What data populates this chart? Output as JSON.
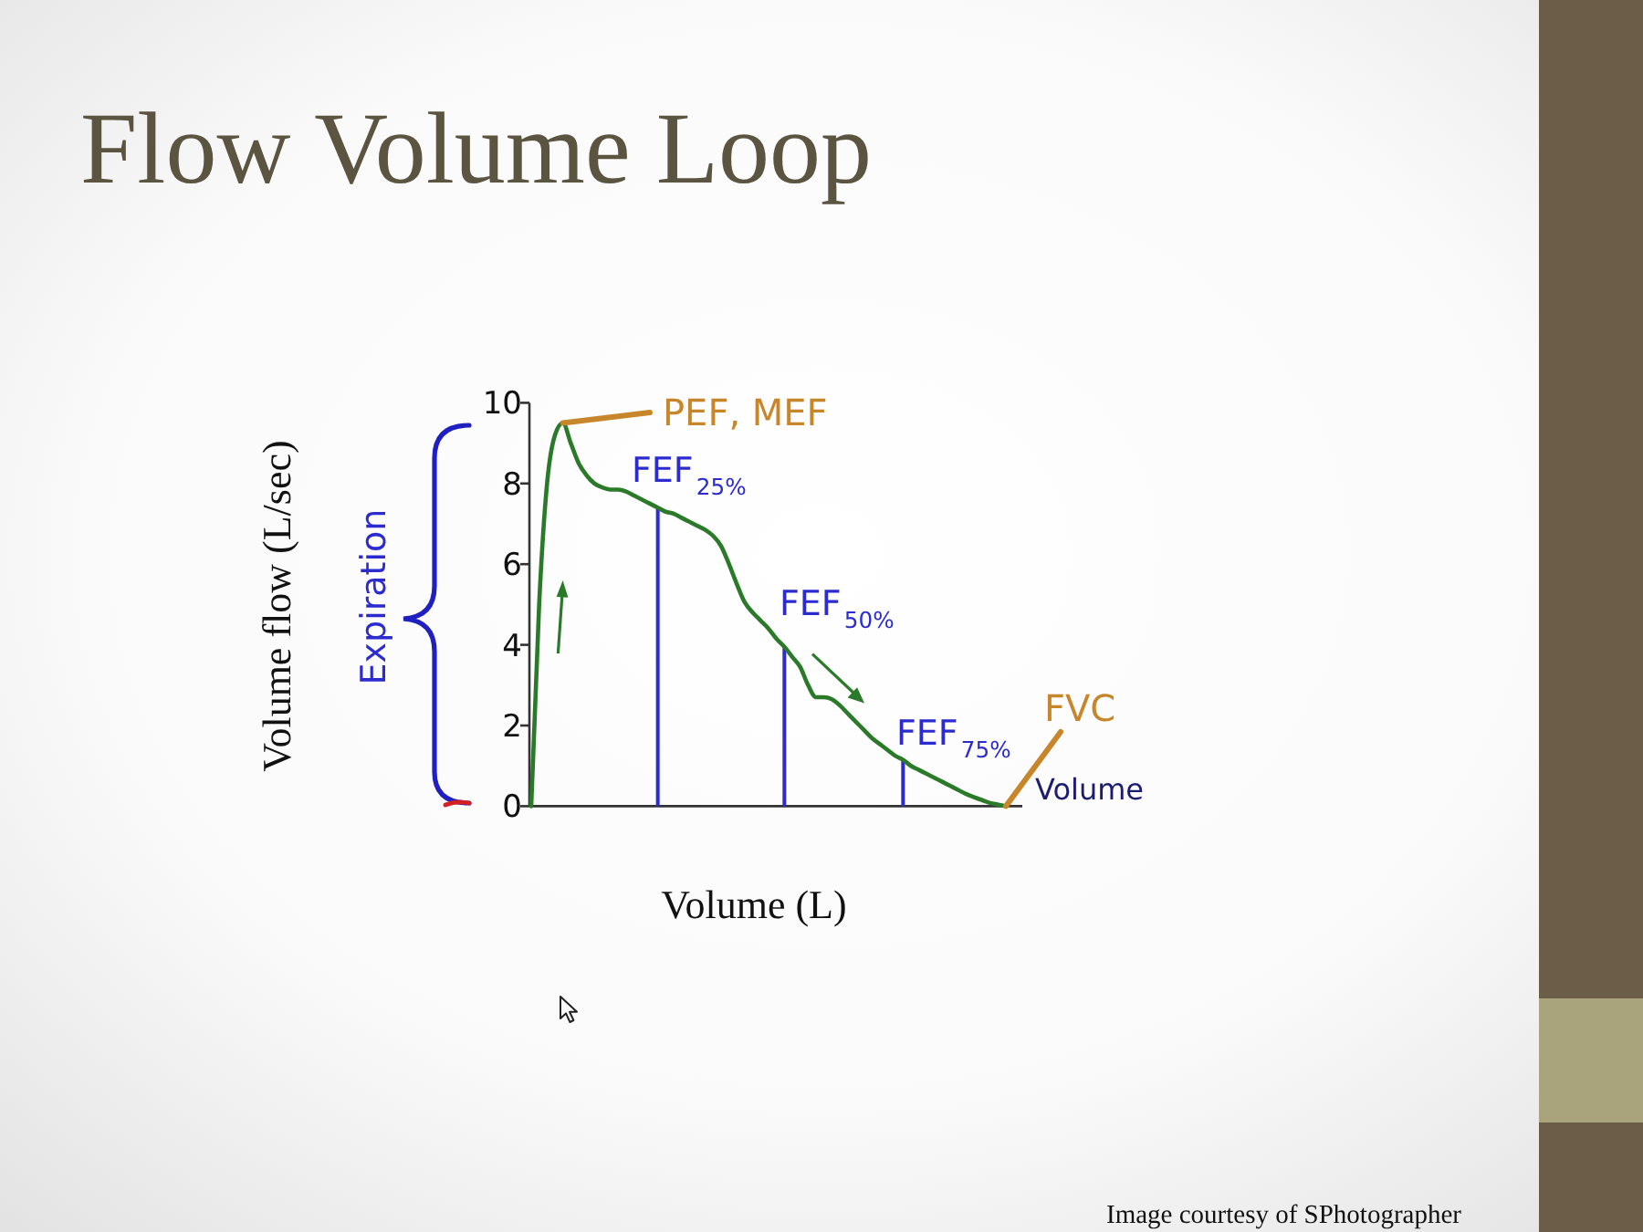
{
  "chart_data": {
    "type": "line",
    "title": "Flow Volume Loop",
    "xlabel": "Volume (L)",
    "ylabel": "Volume flow (L/sec)",
    "categories": [
      null,
      null,
      null,
      null,
      null,
      null,
      null,
      null,
      null,
      null,
      null,
      null,
      null,
      null,
      null,
      null,
      null,
      null,
      null,
      null,
      null,
      null,
      null,
      null,
      null,
      null,
      null,
      null,
      null,
      null,
      null,
      null,
      null,
      null,
      null,
      null,
      null,
      null,
      null,
      null,
      null,
      null,
      null,
      null,
      null,
      null,
      null,
      null,
      null,
      null,
      null,
      null,
      null,
      null,
      null,
      null,
      null,
      null,
      null,
      null,
      null
    ],
    "series": [
      {
        "color": "#2a7a2a",
        "values": [
          0,
          5.0,
          8.0,
          9.2,
          9.5,
          9.0,
          8.5,
          8.2,
          8.0,
          7.9,
          7.85,
          7.85,
          7.8,
          7.7,
          7.6,
          7.5,
          7.4,
          7.3,
          7.25,
          7.15,
          7.05,
          6.95,
          6.85,
          6.7,
          6.45,
          6.0,
          5.5,
          5.05,
          4.8,
          4.6,
          4.4,
          4.15,
          3.95,
          3.7,
          3.45,
          3.0,
          2.7,
          2.7,
          2.65,
          2.5,
          2.3,
          2.1,
          1.9,
          1.7,
          1.55,
          1.4,
          1.25,
          1.15,
          1.0,
          0.9,
          0.8,
          0.7,
          0.6,
          0.5,
          0.4,
          0.3,
          0.22,
          0.15,
          0.08,
          0.04,
          0
        ]
      },
      {
        "type": "bar",
        "color": "#2b2bd0",
        "values": [
          null,
          null,
          null,
          null,
          null,
          null,
          null,
          null,
          null,
          null,
          null,
          null,
          null,
          null,
          null,
          null,
          7.4,
          null,
          null,
          null,
          null,
          null,
          null,
          null,
          null,
          null,
          null,
          null,
          null,
          null,
          null,
          null,
          3.95,
          null,
          null,
          null,
          null,
          null,
          null,
          null,
          null,
          null,
          null,
          null,
          null,
          null,
          null,
          1.15,
          null,
          null,
          null,
          null,
          null,
          null,
          null,
          null,
          null,
          null,
          null,
          null,
          null
        ]
      }
    ],
    "ylim": [
      0,
      10
    ],
    "yticks": [
      0,
      2,
      4,
      6,
      8,
      10
    ],
    "annotations": [
      "PEF, MEF",
      "FEF$_{25%}$",
      "FEF$_{50%}$",
      "FEF$_{75%}$",
      "FVC",
      "Volume",
      "Expiration",
      "Image courtesy of SPhotographer"
    ]
  }
}
